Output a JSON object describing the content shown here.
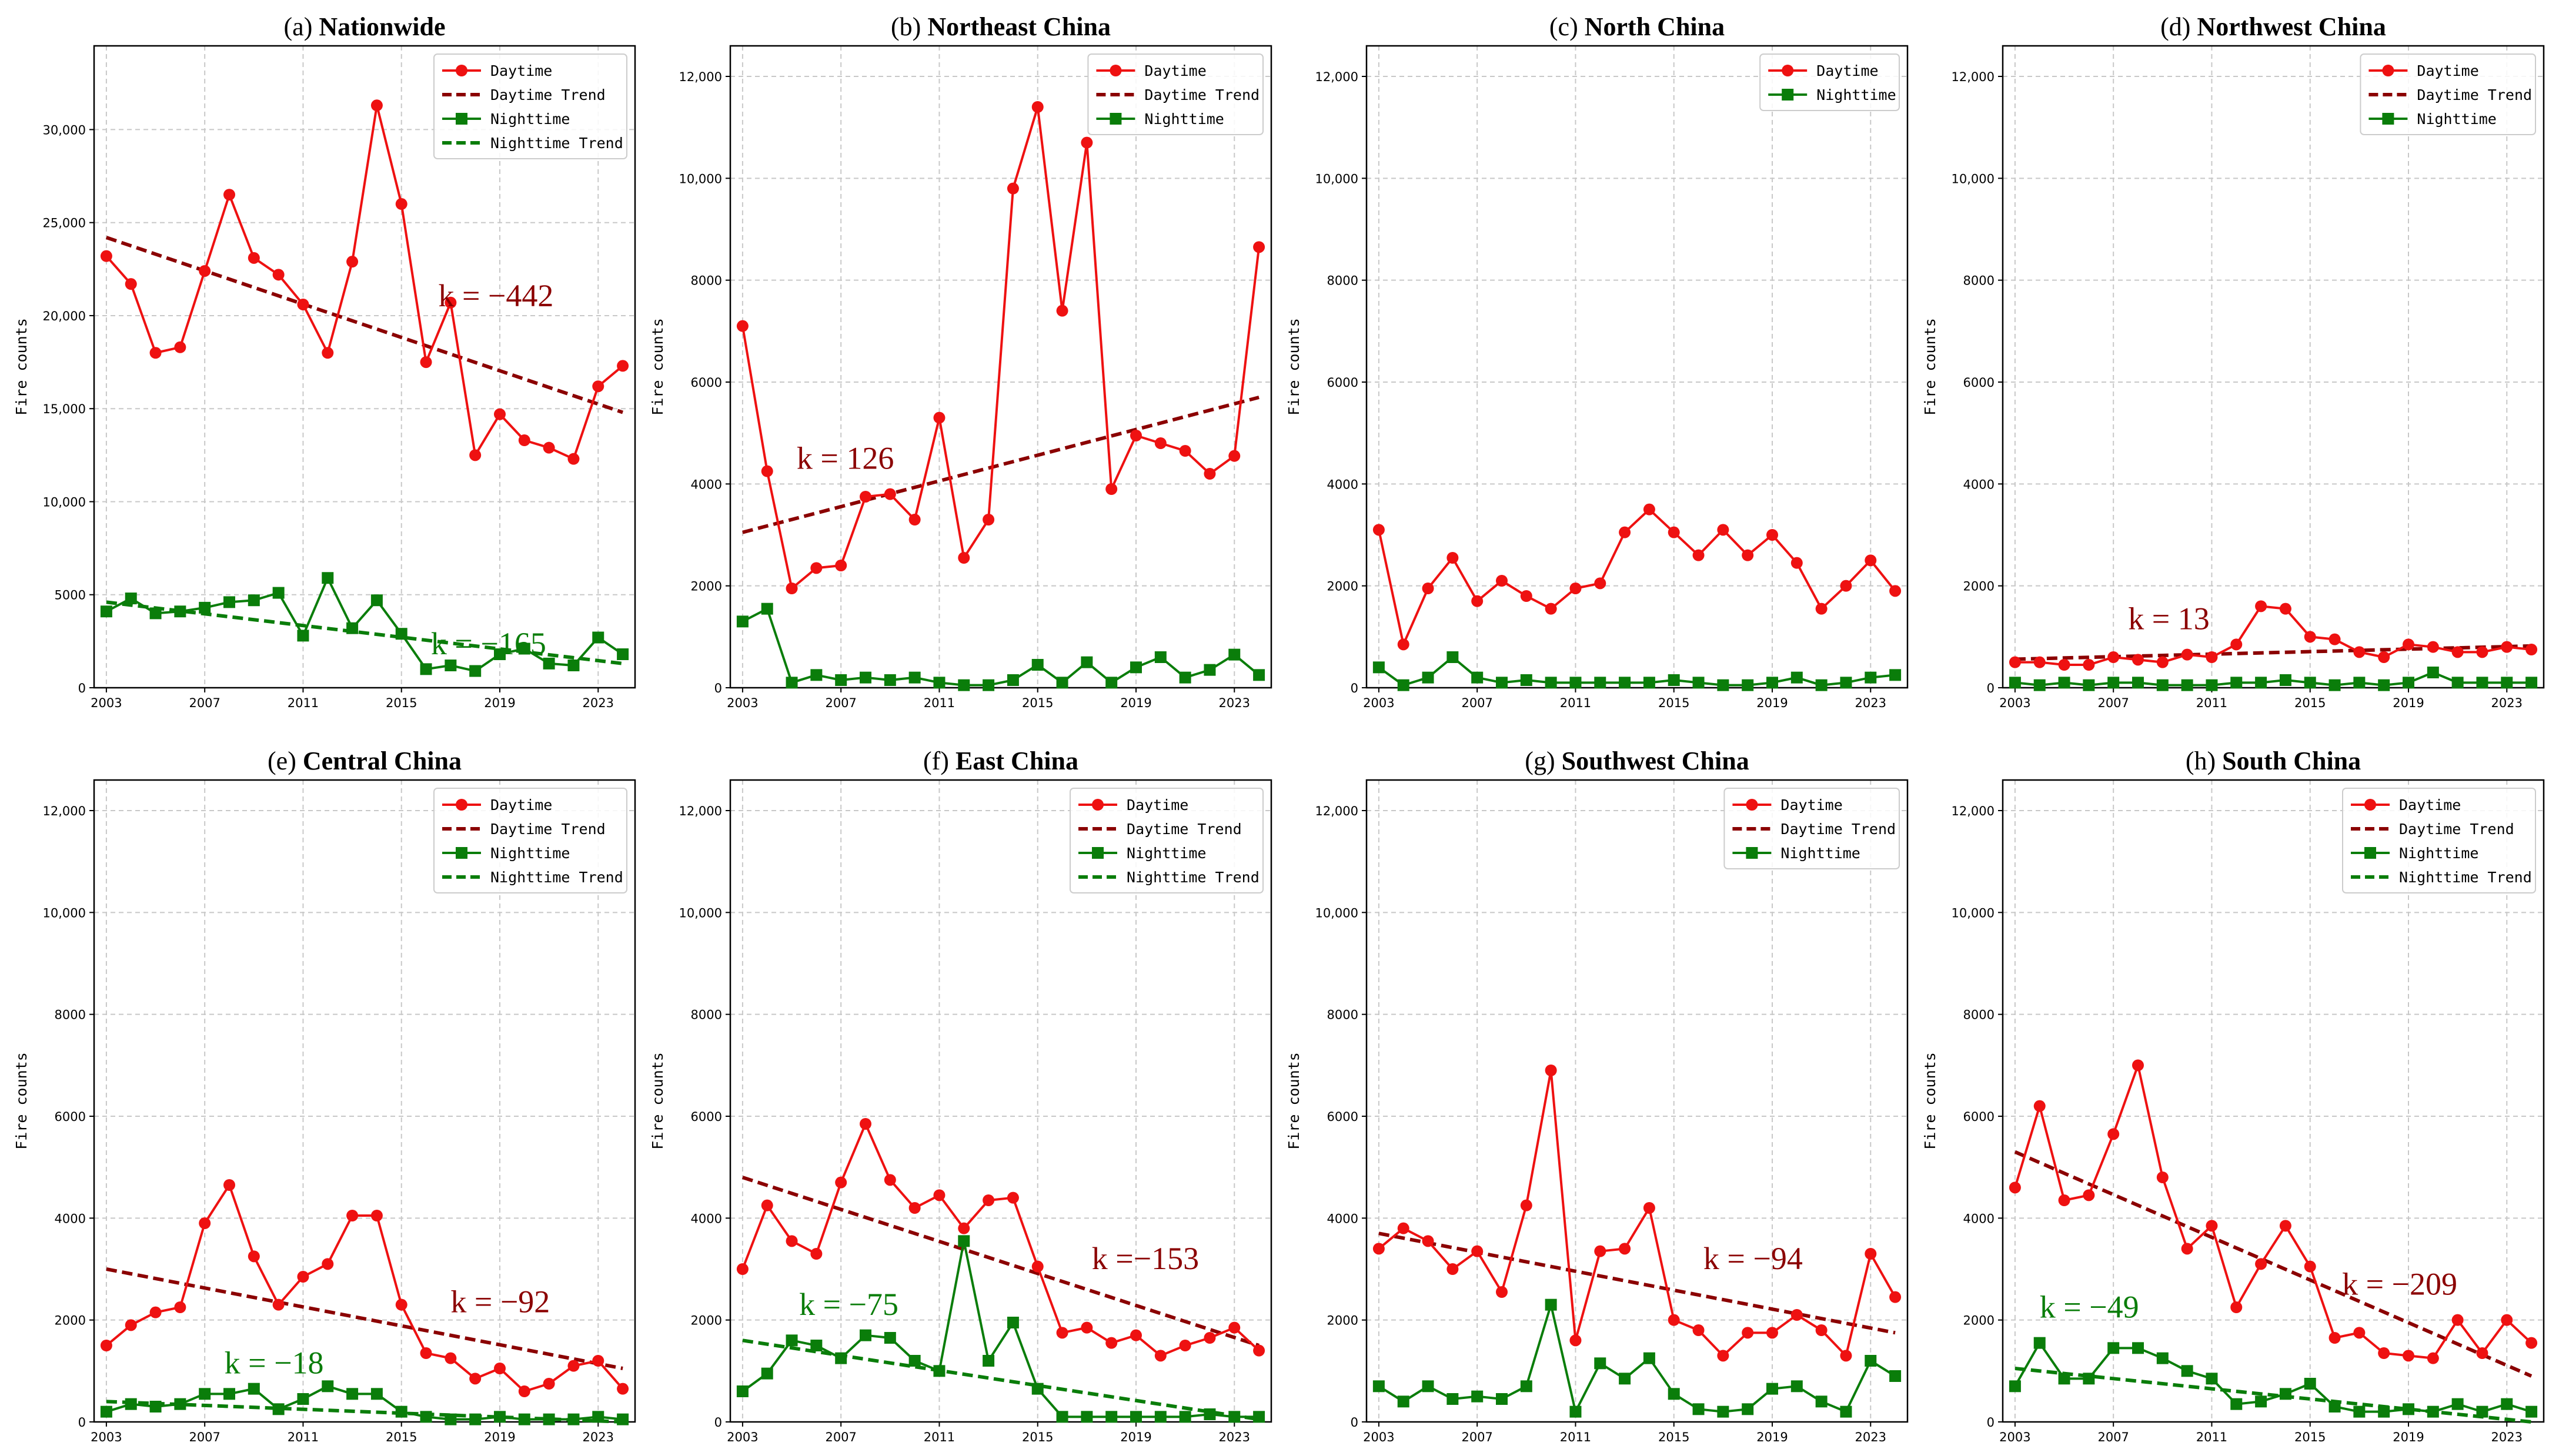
{
  "figure": {
    "years": [
      2003,
      2004,
      2005,
      2006,
      2007,
      2008,
      2009,
      2010,
      2011,
      2012,
      2013,
      2014,
      2015,
      2016,
      2017,
      2018,
      2019,
      2020,
      2021,
      2022,
      2023,
      2024
    ],
    "x_ticks": [
      2003,
      2007,
      2011,
      2015,
      2019,
      2023
    ],
    "xlim": [
      2002.5,
      2024.5
    ],
    "ylabel": "Fire counts",
    "colors": {
      "daytime": "#ee1111",
      "daytime_trend": "#8b0000",
      "nighttime": "#0a7d0a",
      "nighttime_trend": "#0a7d0a",
      "grid": "#c8c8c8"
    },
    "legend_labels": {
      "daytime": "Daytime",
      "daytime_trend": "Daytime Trend",
      "nighttime": "Nighttime",
      "nighttime_trend": "Nighttime Trend"
    }
  },
  "chart_data": [
    {
      "type": "line",
      "label": "(a)",
      "name": "Nationwide",
      "ylim": [
        0,
        34500
      ],
      "yticks": [
        0,
        5000,
        10000,
        15000,
        20000,
        25000,
        30000
      ],
      "ytick_labels": [
        "0",
        "5000",
        "10,000",
        "15,000",
        "20,000",
        "25,000",
        "30,000"
      ],
      "series": [
        {
          "key": "daytime",
          "name": "Daytime",
          "values": [
            23200,
            21700,
            18000,
            18300,
            22400,
            26500,
            23100,
            22200,
            20600,
            18000,
            22900,
            31300,
            26000,
            17500,
            20700,
            12500,
            14700,
            13300,
            12900,
            12300,
            16200,
            17300
          ]
        },
        {
          "key": "nighttime",
          "name": "Nighttime",
          "values": [
            4100,
            4800,
            4000,
            4100,
            4300,
            4600,
            4700,
            5100,
            2800,
            5900,
            3200,
            4700,
            2900,
            1000,
            1200,
            900,
            1800,
            2100,
            1300,
            1200,
            2700,
            1800
          ]
        }
      ],
      "trends": [
        {
          "key": "daytime_trend",
          "name": "Daytime Trend",
          "start": 24200,
          "end": 14800,
          "k": "k = −442"
        },
        {
          "key": "nighttime_trend",
          "name": "Nighttime Trend",
          "start": 4600,
          "end": 1300,
          "k": "k = −165"
        }
      ],
      "legend": [
        "daytime",
        "daytime_trend",
        "nighttime",
        "nighttime_trend"
      ]
    },
    {
      "type": "line",
      "label": "(b)",
      "name": "Northeast China",
      "ylim": [
        0,
        12600
      ],
      "yticks": [
        0,
        2000,
        4000,
        6000,
        8000,
        10000,
        12000
      ],
      "ytick_labels": [
        "0",
        "2000",
        "4000",
        "6000",
        "8000",
        "10,000",
        "12,000"
      ],
      "series": [
        {
          "key": "daytime",
          "name": "Daytime",
          "values": [
            7100,
            4250,
            1950,
            2350,
            2400,
            3750,
            3800,
            3300,
            5300,
            2550,
            3300,
            9800,
            11400,
            7400,
            10700,
            3900,
            4950,
            4800,
            4650,
            4200,
            4550,
            8650
          ]
        },
        {
          "key": "nighttime",
          "name": "Nighttime",
          "values": [
            1300,
            1550,
            100,
            250,
            150,
            200,
            150,
            200,
            100,
            50,
            50,
            150,
            450,
            100,
            500,
            100,
            400,
            600,
            200,
            350,
            650,
            250
          ]
        }
      ],
      "trends": [
        {
          "key": "daytime_trend",
          "name": "Daytime Trend",
          "start": 3050,
          "end": 5700,
          "k": "k = 126"
        }
      ],
      "legend": [
        "daytime",
        "daytime_trend",
        "nighttime"
      ]
    },
    {
      "type": "line",
      "label": "(c)",
      "name": "North China",
      "ylim": [
        0,
        12600
      ],
      "yticks": [
        0,
        2000,
        4000,
        6000,
        8000,
        10000,
        12000
      ],
      "ytick_labels": [
        "0",
        "2000",
        "4000",
        "6000",
        "8000",
        "10,000",
        "12,000"
      ],
      "series": [
        {
          "key": "daytime",
          "name": "Daytime",
          "values": [
            3100,
            850,
            1950,
            2550,
            1700,
            2100,
            1800,
            1550,
            1950,
            2050,
            3050,
            3500,
            3050,
            2600,
            3100,
            2600,
            3000,
            2450,
            1550,
            2000,
            2500,
            1900
          ]
        },
        {
          "key": "nighttime",
          "name": "Nighttime",
          "values": [
            400,
            50,
            200,
            600,
            200,
            100,
            150,
            100,
            100,
            100,
            100,
            100,
            150,
            100,
            50,
            50,
            100,
            200,
            50,
            100,
            200,
            250
          ]
        }
      ],
      "trends": [],
      "legend": [
        "daytime",
        "nighttime"
      ]
    },
    {
      "type": "line",
      "label": "(d)",
      "name": "Northwest China",
      "ylim": [
        0,
        12600
      ],
      "yticks": [
        0,
        2000,
        4000,
        6000,
        8000,
        10000,
        12000
      ],
      "ytick_labels": [
        "0",
        "2000",
        "4000",
        "6000",
        "8000",
        "10,000",
        "12,000"
      ],
      "series": [
        {
          "key": "daytime",
          "name": "Daytime",
          "values": [
            500,
            500,
            450,
            450,
            600,
            550,
            500,
            650,
            600,
            850,
            1600,
            1550,
            1000,
            950,
            700,
            600,
            850,
            800,
            700,
            700,
            800,
            750
          ]
        },
        {
          "key": "nighttime",
          "name": "Nighttime",
          "values": [
            100,
            50,
            100,
            50,
            100,
            100,
            50,
            50,
            50,
            100,
            100,
            150,
            100,
            50,
            100,
            50,
            100,
            300,
            100,
            100,
            100,
            100
          ]
        }
      ],
      "trends": [
        {
          "key": "daytime_trend",
          "name": "Daytime Trend",
          "start": 560,
          "end": 820,
          "k": "k =  13"
        }
      ],
      "legend": [
        "daytime",
        "daytime_trend",
        "nighttime"
      ]
    },
    {
      "type": "line",
      "label": "(e)",
      "name": "Central China",
      "ylim": [
        0,
        12600
      ],
      "yticks": [
        0,
        2000,
        4000,
        6000,
        8000,
        10000,
        12000
      ],
      "ytick_labels": [
        "0",
        "2000",
        "4000",
        "6000",
        "8000",
        "10,000",
        "12,000"
      ],
      "series": [
        {
          "key": "daytime",
          "name": "Daytime",
          "values": [
            1500,
            1900,
            2150,
            2250,
            3900,
            4650,
            3250,
            2300,
            2850,
            3100,
            4050,
            4050,
            2300,
            1350,
            1250,
            850,
            1050,
            600,
            750,
            1100,
            1200,
            650
          ]
        },
        {
          "key": "nighttime",
          "name": "Nighttime",
          "values": [
            200,
            350,
            300,
            350,
            550,
            550,
            650,
            250,
            450,
            700,
            550,
            550,
            200,
            100,
            50,
            50,
            100,
            50,
            50,
            50,
            100,
            50
          ]
        }
      ],
      "trends": [
        {
          "key": "daytime_trend",
          "name": "Daytime Trend",
          "start": 3000,
          "end": 1050,
          "k": "k = −92"
        },
        {
          "key": "nighttime_trend",
          "name": "Nighttime Trend",
          "start": 400,
          "end": 0,
          "k": "k = −18"
        }
      ],
      "legend": [
        "daytime",
        "daytime_trend",
        "nighttime",
        "nighttime_trend"
      ]
    },
    {
      "type": "line",
      "label": "(f)",
      "name": "East China",
      "ylim": [
        0,
        12600
      ],
      "yticks": [
        0,
        2000,
        4000,
        6000,
        8000,
        10000,
        12000
      ],
      "ytick_labels": [
        "0",
        "2000",
        "4000",
        "6000",
        "8000",
        "10,000",
        "12,000"
      ],
      "series": [
        {
          "key": "daytime",
          "name": "Daytime",
          "values": [
            3000,
            4250,
            3550,
            3300,
            4700,
            5850,
            4750,
            4200,
            4450,
            3800,
            4350,
            4400,
            3050,
            1750,
            1850,
            1550,
            1700,
            1300,
            1500,
            1650,
            1850,
            1400
          ]
        },
        {
          "key": "nighttime",
          "name": "Nighttime",
          "values": [
            600,
            950,
            1600,
            1500,
            1250,
            1700,
            1650,
            1200,
            1000,
            3550,
            1200,
            1950,
            650,
            100,
            100,
            100,
            100,
            100,
            100,
            150,
            100,
            100
          ]
        }
      ],
      "trends": [
        {
          "key": "daytime_trend",
          "name": "Daytime Trend",
          "start": 4800,
          "end": 1500,
          "k": "k =−153"
        },
        {
          "key": "nighttime_trend",
          "name": "Nighttime Trend",
          "start": 1600,
          "end": 50,
          "k": "k = −75"
        }
      ],
      "legend": [
        "daytime",
        "daytime_trend",
        "nighttime",
        "nighttime_trend"
      ]
    },
    {
      "type": "line",
      "label": "(g)",
      "name": "Southwest China",
      "ylim": [
        0,
        12600
      ],
      "yticks": [
        0,
        2000,
        4000,
        6000,
        8000,
        10000,
        12000
      ],
      "ytick_labels": [
        "0",
        "2000",
        "4000",
        "6000",
        "8000",
        "10,000",
        "12,000"
      ],
      "series": [
        {
          "key": "daytime",
          "name": "Daytime",
          "values": [
            3400,
            3800,
            3550,
            3000,
            3350,
            2550,
            4250,
            6900,
            1600,
            3350,
            3400,
            4200,
            2000,
            1800,
            1300,
            1750,
            1750,
            2100,
            1800,
            1300,
            3300,
            2450
          ]
        },
        {
          "key": "nighttime",
          "name": "Nighttime",
          "values": [
            700,
            400,
            700,
            450,
            500,
            450,
            700,
            2300,
            200,
            1150,
            850,
            1250,
            550,
            250,
            200,
            250,
            650,
            700,
            400,
            200,
            1200,
            900
          ]
        }
      ],
      "trends": [
        {
          "key": "daytime_trend",
          "name": "Daytime Trend",
          "start": 3700,
          "end": 1750,
          "k": "k = −94"
        }
      ],
      "legend": [
        "daytime",
        "daytime_trend",
        "nighttime"
      ]
    },
    {
      "type": "line",
      "label": "(h)",
      "name": "South China",
      "ylim": [
        0,
        12600
      ],
      "yticks": [
        0,
        2000,
        4000,
        6000,
        8000,
        10000,
        12000
      ],
      "ytick_labels": [
        "0",
        "2000",
        "4000",
        "6000",
        "8000",
        "10,000",
        "12,000"
      ],
      "series": [
        {
          "key": "daytime",
          "name": "Daytime",
          "values": [
            4600,
            6200,
            4350,
            4450,
            5650,
            7000,
            4800,
            3400,
            3850,
            2250,
            3100,
            3850,
            3050,
            1650,
            1750,
            1350,
            1300,
            1250,
            2000,
            1350,
            2000,
            1550
          ]
        },
        {
          "key": "nighttime",
          "name": "Nighttime",
          "values": [
            700,
            1550,
            850,
            850,
            1450,
            1450,
            1250,
            1000,
            850,
            350,
            400,
            550,
            750,
            300,
            200,
            200,
            250,
            200,
            350,
            200,
            350,
            200
          ]
        }
      ],
      "trends": [
        {
          "key": "daytime_trend",
          "name": "Daytime Trend",
          "start": 5300,
          "end": 900,
          "k": "k = −209"
        },
        {
          "key": "nighttime_trend",
          "name": "Nighttime Trend",
          "start": 1050,
          "end": 0,
          "k": "k = −49"
        }
      ],
      "legend": [
        "daytime",
        "daytime_trend",
        "nighttime",
        "nighttime_trend"
      ]
    }
  ]
}
